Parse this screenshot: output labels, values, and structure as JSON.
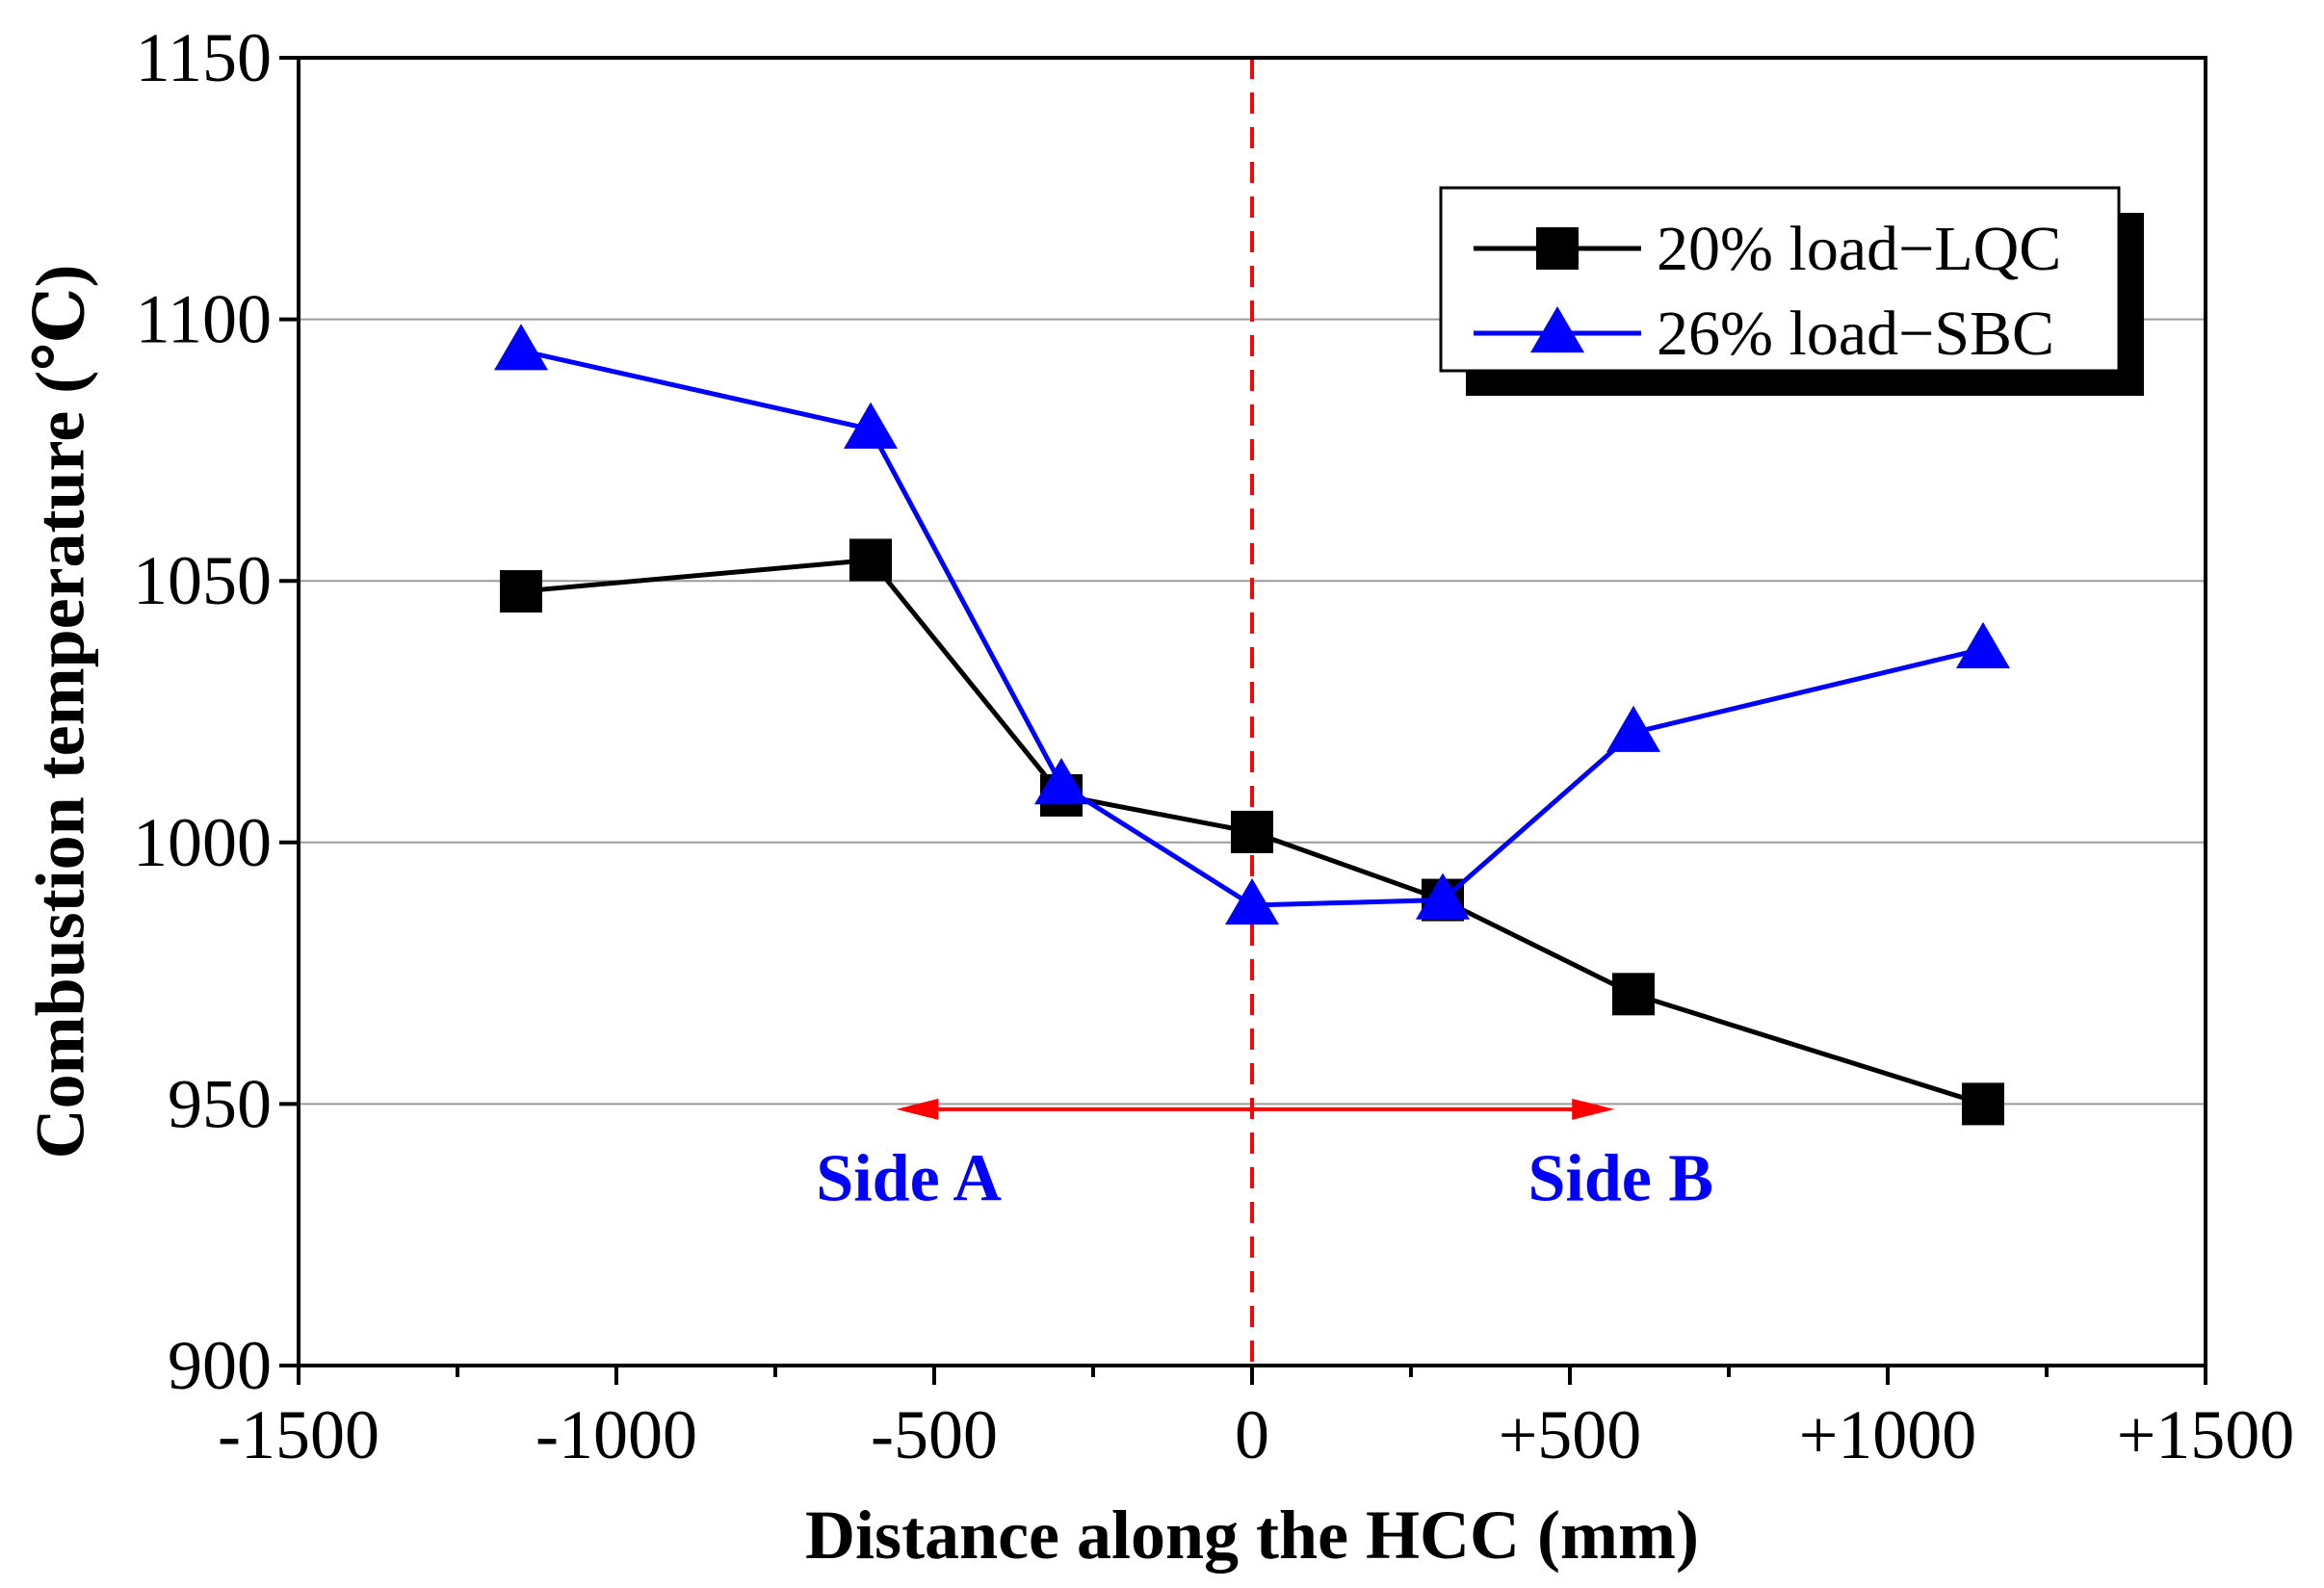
{
  "chart_data": {
    "type": "line",
    "title": "",
    "xlabel": "Distance along the HCC (mm)",
    "ylabel": "Combustion temperature (℃)",
    "xlim": [
      -1500,
      1500
    ],
    "ylim": [
      900,
      1150
    ],
    "x_ticks": [
      -1500,
      -1000,
      -500,
      0,
      500,
      1000,
      1500
    ],
    "x_tick_labels": [
      "-1500",
      "-1000",
      "-500",
      "0",
      "+500",
      "+1000",
      "+1500"
    ],
    "y_ticks": [
      900,
      950,
      1000,
      1050,
      1100,
      1150
    ],
    "y_tick_labels": [
      "900",
      "950",
      "1000",
      "1050",
      "1100",
      "1150"
    ],
    "gridlines_y": [
      950,
      1000,
      1050,
      1100
    ],
    "legend_position": "top-right",
    "series": [
      {
        "name": "20% load−LQC",
        "color": "#000000",
        "marker": "square",
        "x": [
          -1150,
          -600,
          -300,
          0,
          300,
          600,
          1150
        ],
        "y": [
          1048,
          1054,
          1009,
          1002,
          989,
          971,
          950
        ]
      },
      {
        "name": "26% load−SBC",
        "color": "#0000ff",
        "marker": "triangle",
        "x": [
          -1150,
          -600,
          -300,
          0,
          300,
          600,
          1150
        ],
        "y": [
          1094,
          1079,
          1011,
          988,
          989,
          1021,
          1037
        ]
      }
    ],
    "annotations": {
      "center_line_x": 0,
      "center_line_color": "#ff0000",
      "arrow_color": "#ff0000",
      "arrow_y": 949,
      "arrow_left_to": -560,
      "arrow_right_to": 570,
      "side_a": {
        "text": "Side A",
        "x": -540,
        "y": 936,
        "color": "#0000ff"
      },
      "side_b": {
        "text": "Side B",
        "x": 580,
        "y": 936,
        "color": "#0000ff"
      }
    }
  }
}
